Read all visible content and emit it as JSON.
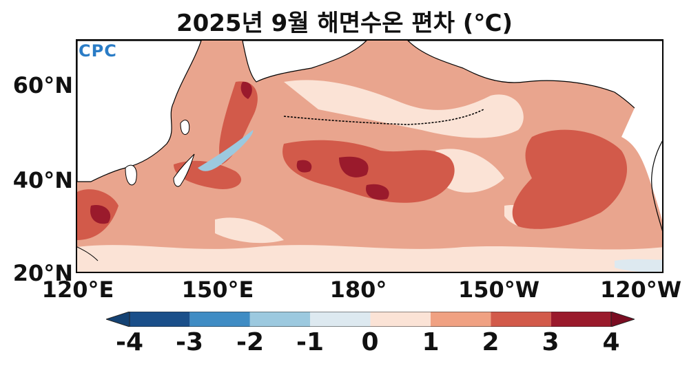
{
  "title": "2025년 9월 해면수온 편차 (℃)",
  "logo_text": "CPC",
  "y_ticks": [
    "60°N",
    "40°N",
    "20°N"
  ],
  "x_ticks": [
    "120°E",
    "150°E",
    "180°",
    "150°W",
    "120°W"
  ],
  "colorbar": {
    "ticks": [
      "-4",
      "-3",
      "-2",
      "-1",
      "0",
      "1",
      "2",
      "3",
      "4"
    ],
    "colors": [
      "#1a4f8a",
      "#3f8cc4",
      "#9cc9df",
      "#dde9f0",
      "#fbe3d6",
      "#f0a182",
      "#d25a4a",
      "#9a1a2c"
    ],
    "under_color": "#144273",
    "over_color": "#7a0d22"
  },
  "map_colors": {
    "ocean_background": "#e9a58e",
    "anomaly_1_2": "#f0a182",
    "anomaly_0_1": "#fbe3d6",
    "anomaly_2_3": "#d25a4a",
    "anomaly_3_4": "#9a1a2c",
    "anomaly_neg": "#9cc9df",
    "land": "#ffffff"
  }
}
